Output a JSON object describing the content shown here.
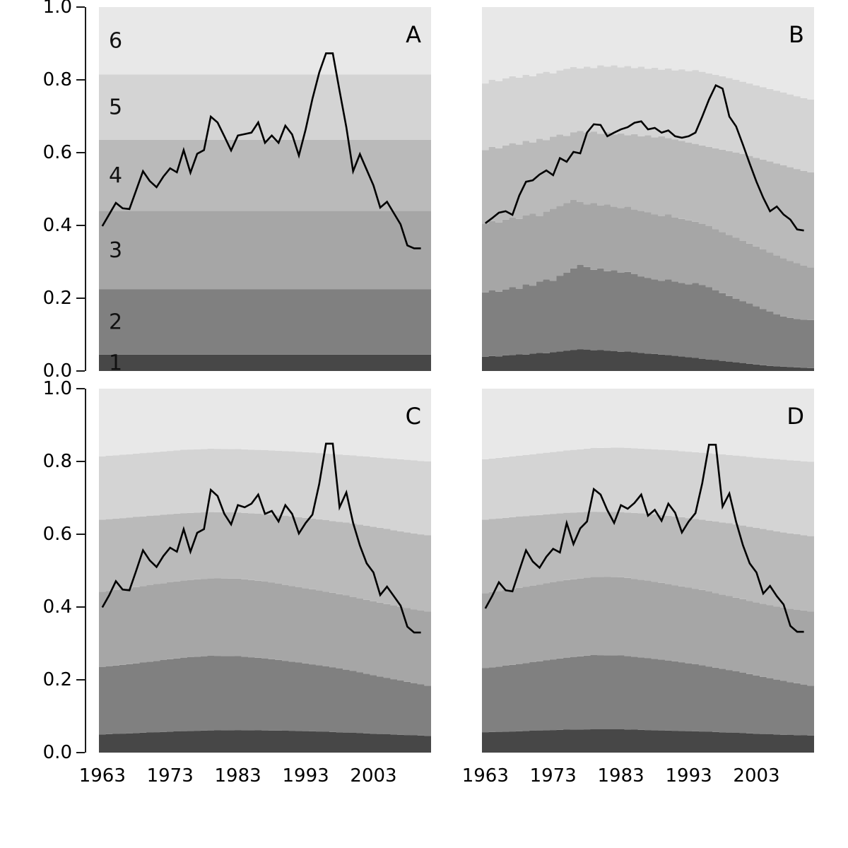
{
  "figure": {
    "background": "#ffffff",
    "description": "Four-panel stacked grayscale quantile-band chart with an overlaid black annual time-series line"
  },
  "chart_data": {
    "type": "area",
    "x_start_year": 1963,
    "x_end_year": 2011,
    "line_start_year": 1963,
    "line_end_year": 2010,
    "x_ticks": [
      "1963",
      "1973",
      "1983",
      "1993",
      "2003"
    ],
    "x_tick_years": [
      1963,
      1973,
      1983,
      1993,
      2003
    ],
    "y_ticks": [
      "1.0",
      "0.8",
      "0.6",
      "0.4",
      "0.2",
      "0.0"
    ],
    "y_tick_values": [
      1.0,
      0.8,
      0.6,
      0.4,
      0.2,
      0.0
    ],
    "ylim": [
      0,
      1
    ],
    "grid": false,
    "legend": "none",
    "band_labels": [
      "1",
      "2",
      "3",
      "4",
      "5",
      "6"
    ],
    "band_colors": [
      "#474747",
      "#808080",
      "#a6a6a6",
      "#bababa",
      "#d4d4d4",
      "#e8e8e8"
    ],
    "line_color": "#000000",
    "panels": [
      {
        "letter": "A",
        "band_style": "constant",
        "show_band_labels": true,
        "band_boundaries": [
          0.045,
          0.225,
          0.44,
          0.635,
          0.815
        ],
        "line": [
          0.398,
          0.43,
          0.462,
          0.447,
          0.445,
          0.497,
          0.549,
          0.522,
          0.505,
          0.534,
          0.557,
          0.546,
          0.607,
          0.545,
          0.597,
          0.607,
          0.699,
          0.683,
          0.645,
          0.606,
          0.647,
          0.651,
          0.655,
          0.683,
          0.627,
          0.647,
          0.627,
          0.674,
          0.65,
          0.592,
          0.664,
          0.748,
          0.82,
          0.873,
          0.873,
          0.77,
          0.67,
          0.549,
          0.596,
          0.553,
          0.51,
          0.449,
          0.465,
          0.434,
          0.403,
          0.345,
          0.337,
          0.337
        ]
      },
      {
        "letter": "B",
        "band_style": "yearly-steps",
        "show_band_labels": false,
        "boundaries": [
          [
            0.039,
            0.041,
            0.04,
            0.043,
            0.044,
            0.046,
            0.045,
            0.048,
            0.05,
            0.049,
            0.052,
            0.054,
            0.056,
            0.058,
            0.06,
            0.059,
            0.057,
            0.058,
            0.056,
            0.055,
            0.053,
            0.054,
            0.052,
            0.05,
            0.048,
            0.047,
            0.045,
            0.044,
            0.042,
            0.04,
            0.038,
            0.036,
            0.033,
            0.031,
            0.03,
            0.028,
            0.026,
            0.024,
            0.022,
            0.02,
            0.018,
            0.016,
            0.014,
            0.013,
            0.012,
            0.011,
            0.01,
            0.009,
            0.008
          ],
          [
            0.216,
            0.222,
            0.218,
            0.224,
            0.23,
            0.226,
            0.238,
            0.234,
            0.246,
            0.252,
            0.248,
            0.262,
            0.27,
            0.282,
            0.292,
            0.286,
            0.278,
            0.282,
            0.274,
            0.277,
            0.27,
            0.272,
            0.266,
            0.26,
            0.256,
            0.252,
            0.248,
            0.252,
            0.246,
            0.242,
            0.238,
            0.242,
            0.236,
            0.23,
            0.222,
            0.214,
            0.206,
            0.198,
            0.192,
            0.186,
            0.178,
            0.17,
            0.163,
            0.156,
            0.15,
            0.146,
            0.143,
            0.141,
            0.14
          ],
          [
            0.405,
            0.412,
            0.408,
            0.416,
            0.422,
            0.418,
            0.428,
            0.432,
            0.426,
            0.438,
            0.446,
            0.454,
            0.462,
            0.47,
            0.464,
            0.458,
            0.462,
            0.455,
            0.458,
            0.452,
            0.448,
            0.452,
            0.444,
            0.44,
            0.436,
            0.43,
            0.426,
            0.43,
            0.422,
            0.418,
            0.414,
            0.41,
            0.404,
            0.398,
            0.39,
            0.382,
            0.374,
            0.366,
            0.358,
            0.35,
            0.342,
            0.334,
            0.326,
            0.318,
            0.31,
            0.302,
            0.296,
            0.29,
            0.285
          ],
          [
            0.607,
            0.616,
            0.612,
            0.62,
            0.626,
            0.622,
            0.632,
            0.628,
            0.638,
            0.634,
            0.644,
            0.65,
            0.646,
            0.656,
            0.66,
            0.655,
            0.658,
            0.652,
            0.656,
            0.65,
            0.653,
            0.648,
            0.651,
            0.645,
            0.648,
            0.642,
            0.645,
            0.64,
            0.636,
            0.632,
            0.628,
            0.624,
            0.62,
            0.616,
            0.612,
            0.608,
            0.604,
            0.6,
            0.596,
            0.591,
            0.586,
            0.581,
            0.576,
            0.57,
            0.565,
            0.56,
            0.555,
            0.55,
            0.546
          ],
          [
            0.79,
            0.8,
            0.796,
            0.804,
            0.81,
            0.806,
            0.814,
            0.81,
            0.818,
            0.822,
            0.818,
            0.826,
            0.83,
            0.835,
            0.831,
            0.836,
            0.832,
            0.84,
            0.836,
            0.84,
            0.834,
            0.838,
            0.832,
            0.836,
            0.83,
            0.833,
            0.828,
            0.831,
            0.826,
            0.829,
            0.824,
            0.827,
            0.822,
            0.818,
            0.814,
            0.81,
            0.805,
            0.8,
            0.795,
            0.79,
            0.785,
            0.78,
            0.775,
            0.77,
            0.765,
            0.76,
            0.755,
            0.75,
            0.746
          ]
        ],
        "line": [
          0.406,
          0.42,
          0.435,
          0.439,
          0.429,
          0.482,
          0.52,
          0.524,
          0.54,
          0.551,
          0.538,
          0.585,
          0.575,
          0.602,
          0.598,
          0.655,
          0.678,
          0.676,
          0.645,
          0.655,
          0.664,
          0.67,
          0.682,
          0.686,
          0.664,
          0.668,
          0.655,
          0.661,
          0.645,
          0.641,
          0.645,
          0.655,
          0.699,
          0.746,
          0.785,
          0.776,
          0.699,
          0.672,
          0.622,
          0.57,
          0.52,
          0.476,
          0.439,
          0.452,
          0.43,
          0.416,
          0.389,
          0.386
        ]
      },
      {
        "letter": "C",
        "band_style": "smooth",
        "show_band_labels": false,
        "knot_years": [
          1963,
          1967,
          1971,
          1975,
          1979,
          1983,
          1987,
          1991,
          1995,
          1999,
          2003,
          2007,
          2011
        ],
        "boundaries": [
          [
            0.05,
            0.053,
            0.056,
            0.059,
            0.061,
            0.062,
            0.061,
            0.06,
            0.058,
            0.055,
            0.052,
            0.049,
            0.046
          ],
          [
            0.235,
            0.243,
            0.252,
            0.261,
            0.266,
            0.265,
            0.259,
            0.25,
            0.24,
            0.228,
            0.213,
            0.198,
            0.184
          ],
          [
            0.442,
            0.452,
            0.463,
            0.473,
            0.479,
            0.478,
            0.47,
            0.458,
            0.446,
            0.432,
            0.416,
            0.4,
            0.388
          ],
          [
            0.64,
            0.646,
            0.652,
            0.658,
            0.661,
            0.66,
            0.655,
            0.649,
            0.641,
            0.632,
            0.621,
            0.608,
            0.597
          ],
          [
            0.814,
            0.82,
            0.826,
            0.832,
            0.835,
            0.834,
            0.831,
            0.828,
            0.823,
            0.818,
            0.812,
            0.806,
            0.8
          ]
        ],
        "line": [
          0.399,
          0.432,
          0.471,
          0.448,
          0.446,
          0.5,
          0.556,
          0.528,
          0.51,
          0.54,
          0.563,
          0.552,
          0.614,
          0.552,
          0.604,
          0.614,
          0.722,
          0.705,
          0.656,
          0.627,
          0.68,
          0.674,
          0.684,
          0.709,
          0.656,
          0.664,
          0.635,
          0.68,
          0.656,
          0.602,
          0.631,
          0.654,
          0.738,
          0.849,
          0.849,
          0.674,
          0.715,
          0.631,
          0.569,
          0.52,
          0.495,
          0.433,
          0.456,
          0.43,
          0.404,
          0.346,
          0.33,
          0.33
        ]
      },
      {
        "letter": "D",
        "band_style": "smooth",
        "show_band_labels": false,
        "knot_years": [
          1963,
          1967,
          1971,
          1975,
          1979,
          1983,
          1987,
          1991,
          1995,
          1999,
          2003,
          2007,
          2011
        ],
        "boundaries": [
          [
            0.056,
            0.058,
            0.061,
            0.063,
            0.064,
            0.064,
            0.062,
            0.06,
            0.058,
            0.055,
            0.052,
            0.049,
            0.047
          ],
          [
            0.232,
            0.241,
            0.251,
            0.261,
            0.268,
            0.267,
            0.26,
            0.251,
            0.24,
            0.227,
            0.212,
            0.197,
            0.184
          ],
          [
            0.438,
            0.45,
            0.462,
            0.474,
            0.483,
            0.482,
            0.473,
            0.46,
            0.447,
            0.43,
            0.413,
            0.398,
            0.388
          ],
          [
            0.64,
            0.647,
            0.653,
            0.659,
            0.662,
            0.661,
            0.656,
            0.649,
            0.64,
            0.63,
            0.618,
            0.605,
            0.595
          ],
          [
            0.806,
            0.814,
            0.822,
            0.83,
            0.837,
            0.838,
            0.834,
            0.83,
            0.824,
            0.818,
            0.811,
            0.805,
            0.799
          ]
        ],
        "line": [
          0.396,
          0.43,
          0.468,
          0.446,
          0.443,
          0.5,
          0.556,
          0.525,
          0.508,
          0.538,
          0.56,
          0.55,
          0.631,
          0.573,
          0.616,
          0.635,
          0.724,
          0.709,
          0.666,
          0.631,
          0.68,
          0.67,
          0.686,
          0.709,
          0.651,
          0.667,
          0.637,
          0.684,
          0.659,
          0.605,
          0.635,
          0.658,
          0.74,
          0.846,
          0.846,
          0.676,
          0.712,
          0.634,
          0.57,
          0.52,
          0.495,
          0.437,
          0.458,
          0.43,
          0.407,
          0.348,
          0.332,
          0.332
        ]
      }
    ]
  }
}
